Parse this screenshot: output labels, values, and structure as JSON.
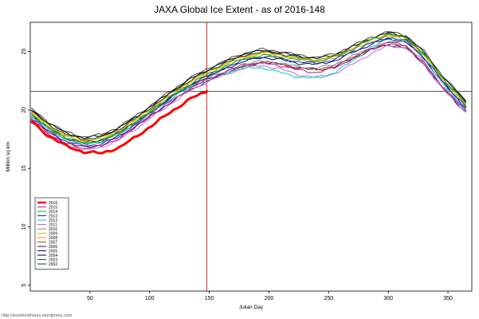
{
  "title": "JAXA Global Ice Extent - as of 2016-148",
  "footer_url": "http://sunshinehours.wordpress.com",
  "chart_data": {
    "type": "line",
    "title": "JAXA Global Ice Extent - as of 2016-148",
    "xlabel": "Julian Day",
    "ylabel": "Million sq km",
    "xlim": [
      0,
      370
    ],
    "ylim": [
      4.5,
      27.5
    ],
    "x_ticks": [
      50,
      100,
      150,
      200,
      250,
      300,
      350
    ],
    "y_ticks": [
      5,
      10,
      15,
      20,
      25
    ],
    "grid": false,
    "legend_position": "bottom-left",
    "reference_lines": {
      "vertical_x": 148,
      "vertical_color": "#CC0000",
      "horizontal_y": 21.6,
      "horizontal_color": "#444444"
    },
    "days": [
      1,
      15,
      30,
      45,
      60,
      75,
      90,
      105,
      120,
      135,
      150,
      165,
      180,
      195,
      210,
      225,
      240,
      255,
      270,
      285,
      300,
      315,
      330,
      345,
      365
    ],
    "series": [
      {
        "name": "2016",
        "color": "#FF0000",
        "width": 3,
        "days": [
          1,
          15,
          30,
          45,
          60,
          75,
          90,
          105,
          120,
          135,
          148
        ],
        "values": [
          19.0,
          17.8,
          16.9,
          16.4,
          16.3,
          16.8,
          17.8,
          18.9,
          20.0,
          21.0,
          21.6
        ]
      },
      {
        "name": "2015",
        "color": "#C71585",
        "width": 1,
        "values": [
          19.2,
          18.0,
          17.1,
          16.7,
          16.9,
          17.6,
          18.7,
          19.8,
          20.9,
          21.9,
          22.7,
          23.3,
          23.8,
          24.0,
          23.8,
          23.4,
          23.2,
          23.6,
          24.4,
          25.2,
          25.8,
          25.5,
          24.0,
          22.0,
          19.9
        ]
      },
      {
        "name": "2014",
        "color": "#00BB00",
        "width": 1,
        "values": [
          19.6,
          18.5,
          17.6,
          17.2,
          17.4,
          18.1,
          19.1,
          20.2,
          21.3,
          22.3,
          23.1,
          23.8,
          24.4,
          24.7,
          24.5,
          24.3,
          24.2,
          24.5,
          25.2,
          26.0,
          26.5,
          26.2,
          24.8,
          22.8,
          20.6
        ]
      },
      {
        "name": "2013",
        "color": "#2222CC",
        "width": 1,
        "values": [
          19.3,
          18.2,
          17.3,
          16.9,
          17.1,
          17.8,
          18.9,
          20.1,
          21.2,
          22.2,
          23.0,
          23.7,
          24.3,
          24.6,
          24.4,
          24.1,
          24.0,
          24.3,
          25.0,
          25.7,
          26.2,
          25.9,
          24.5,
          22.5,
          20.3
        ]
      },
      {
        "name": "2012",
        "color": "#00CCCC",
        "width": 1,
        "values": [
          19.5,
          18.4,
          17.5,
          17.1,
          17.3,
          18.0,
          19.0,
          20.1,
          21.1,
          22.0,
          22.7,
          23.2,
          23.6,
          23.6,
          23.2,
          22.8,
          22.7,
          23.2,
          24.2,
          25.3,
          26.1,
          25.9,
          24.4,
          22.3,
          20.1
        ]
      },
      {
        "name": "2011",
        "color": "#BB66EE",
        "width": 1,
        "values": [
          19.1,
          17.9,
          17.0,
          16.6,
          16.8,
          17.5,
          18.5,
          19.6,
          20.7,
          21.7,
          22.5,
          23.1,
          23.6,
          23.8,
          23.5,
          23.0,
          22.8,
          23.1,
          23.9,
          24.8,
          25.5,
          25.3,
          23.9,
          21.9,
          19.8
        ]
      },
      {
        "name": "2010",
        "color": "#888888",
        "width": 1,
        "values": [
          19.4,
          18.3,
          17.4,
          17.0,
          17.2,
          17.9,
          18.9,
          20.0,
          21.0,
          21.9,
          22.6,
          23.3,
          23.9,
          24.2,
          24.0,
          23.7,
          23.6,
          23.9,
          24.6,
          25.3,
          25.8,
          25.5,
          24.1,
          22.1,
          20.0
        ]
      },
      {
        "name": "2009",
        "color": "#BBBB00",
        "width": 1,
        "values": [
          19.7,
          18.6,
          17.7,
          17.3,
          17.5,
          18.2,
          19.2,
          20.3,
          21.4,
          22.4,
          23.2,
          23.9,
          24.5,
          24.8,
          24.6,
          24.3,
          24.1,
          24.4,
          25.1,
          25.8,
          26.3,
          26.0,
          24.6,
          22.6,
          20.4
        ]
      },
      {
        "name": "2008",
        "color": "#FF8800",
        "width": 1,
        "values": [
          19.8,
          18.7,
          17.8,
          17.4,
          17.6,
          18.3,
          19.3,
          20.4,
          21.5,
          22.5,
          23.3,
          24.0,
          24.6,
          24.9,
          24.7,
          24.4,
          24.3,
          24.6,
          25.3,
          26.0,
          26.4,
          26.1,
          24.7,
          22.7,
          20.5
        ]
      },
      {
        "name": "2007",
        "color": "#885522",
        "width": 1,
        "values": [
          19.5,
          18.4,
          17.5,
          17.1,
          17.3,
          18.0,
          19.0,
          20.1,
          21.2,
          22.1,
          22.8,
          23.4,
          23.9,
          24.1,
          23.9,
          23.6,
          23.5,
          23.8,
          24.5,
          25.2,
          25.7,
          25.4,
          24.0,
          22.0,
          19.9
        ]
      },
      {
        "name": "2006",
        "color": "#550055",
        "width": 1,
        "values": [
          19.2,
          18.1,
          17.2,
          16.8,
          17.0,
          17.7,
          18.7,
          19.8,
          20.8,
          21.8,
          22.5,
          23.2,
          23.8,
          24.1,
          23.9,
          23.6,
          23.4,
          23.7,
          24.4,
          25.1,
          25.6,
          25.3,
          23.9,
          21.9,
          19.8
        ]
      },
      {
        "name": "2005",
        "color": "#000088",
        "width": 1,
        "values": [
          19.6,
          18.5,
          17.6,
          17.2,
          17.4,
          18.1,
          19.1,
          20.2,
          21.3,
          22.2,
          22.9,
          23.6,
          24.2,
          24.5,
          24.3,
          24.0,
          23.9,
          24.2,
          24.9,
          25.6,
          26.1,
          25.8,
          24.4,
          22.4,
          20.2
        ]
      },
      {
        "name": "2004",
        "color": "#000000",
        "width": 1,
        "values": [
          20.0,
          18.9,
          18.0,
          17.6,
          17.8,
          18.5,
          19.5,
          20.6,
          21.7,
          22.7,
          23.5,
          24.2,
          24.8,
          25.1,
          24.9,
          24.6,
          24.4,
          24.7,
          25.4,
          26.1,
          26.6,
          26.3,
          24.9,
          22.9,
          20.7
        ]
      },
      {
        "name": "2003",
        "color": "#444444",
        "width": 1,
        "values": [
          20.1,
          19.0,
          18.1,
          17.7,
          17.9,
          18.6,
          19.6,
          20.7,
          21.8,
          22.8,
          23.6,
          24.3,
          24.9,
          25.2,
          25.0,
          24.7,
          24.5,
          24.8,
          25.5,
          26.2,
          26.7,
          26.4,
          25.0,
          23.0,
          20.8
        ]
      },
      {
        "name": "2002",
        "color": "#004400",
        "width": 1,
        "values": [
          19.9,
          18.8,
          17.9,
          17.5,
          17.7,
          18.4,
          19.4,
          20.5,
          21.6,
          22.6,
          23.4,
          24.1,
          24.7,
          25.0,
          24.8,
          24.5,
          24.3,
          24.6,
          25.3,
          26.0,
          26.5,
          26.2,
          24.8,
          22.8,
          20.6
        ]
      }
    ]
  }
}
